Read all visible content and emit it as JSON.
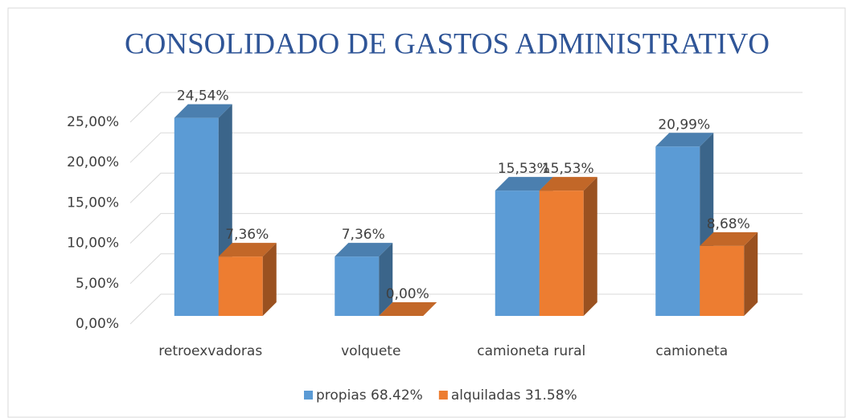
{
  "chart_data": {
    "type": "bar3d",
    "title": "CONSOLIDADO DE GASTOS ADMINISTRATIVO",
    "categories": [
      "retroexvadoras",
      "volquete",
      "camioneta rural",
      "camioneta"
    ],
    "series": [
      {
        "name": "propias 68.42%",
        "color": "#5b9bd5",
        "values": [
          24.54,
          7.36,
          15.53,
          20.99
        ],
        "value_labels": [
          "24,54%",
          "7,36%",
          "15,53%",
          "20,99%"
        ]
      },
      {
        "name": "alquiladas 31.58%",
        "color": "#ed7d31",
        "values": [
          7.36,
          0,
          15.53,
          8.68
        ],
        "value_labels": [
          "7,36%",
          "0,00%",
          "15,53%",
          "8,68%"
        ]
      }
    ],
    "ylim": [
      0,
      25
    ],
    "yticks": [
      {
        "value": 0,
        "label": "0,00%"
      },
      {
        "value": 5,
        "label": "5,00%"
      },
      {
        "value": 10,
        "label": "10,00%"
      },
      {
        "value": 15,
        "label": "15,00%"
      },
      {
        "value": 20,
        "label": "20,00%"
      },
      {
        "value": 25,
        "label": "25,00%"
      }
    ],
    "grid": true,
    "legend": "bottom"
  }
}
